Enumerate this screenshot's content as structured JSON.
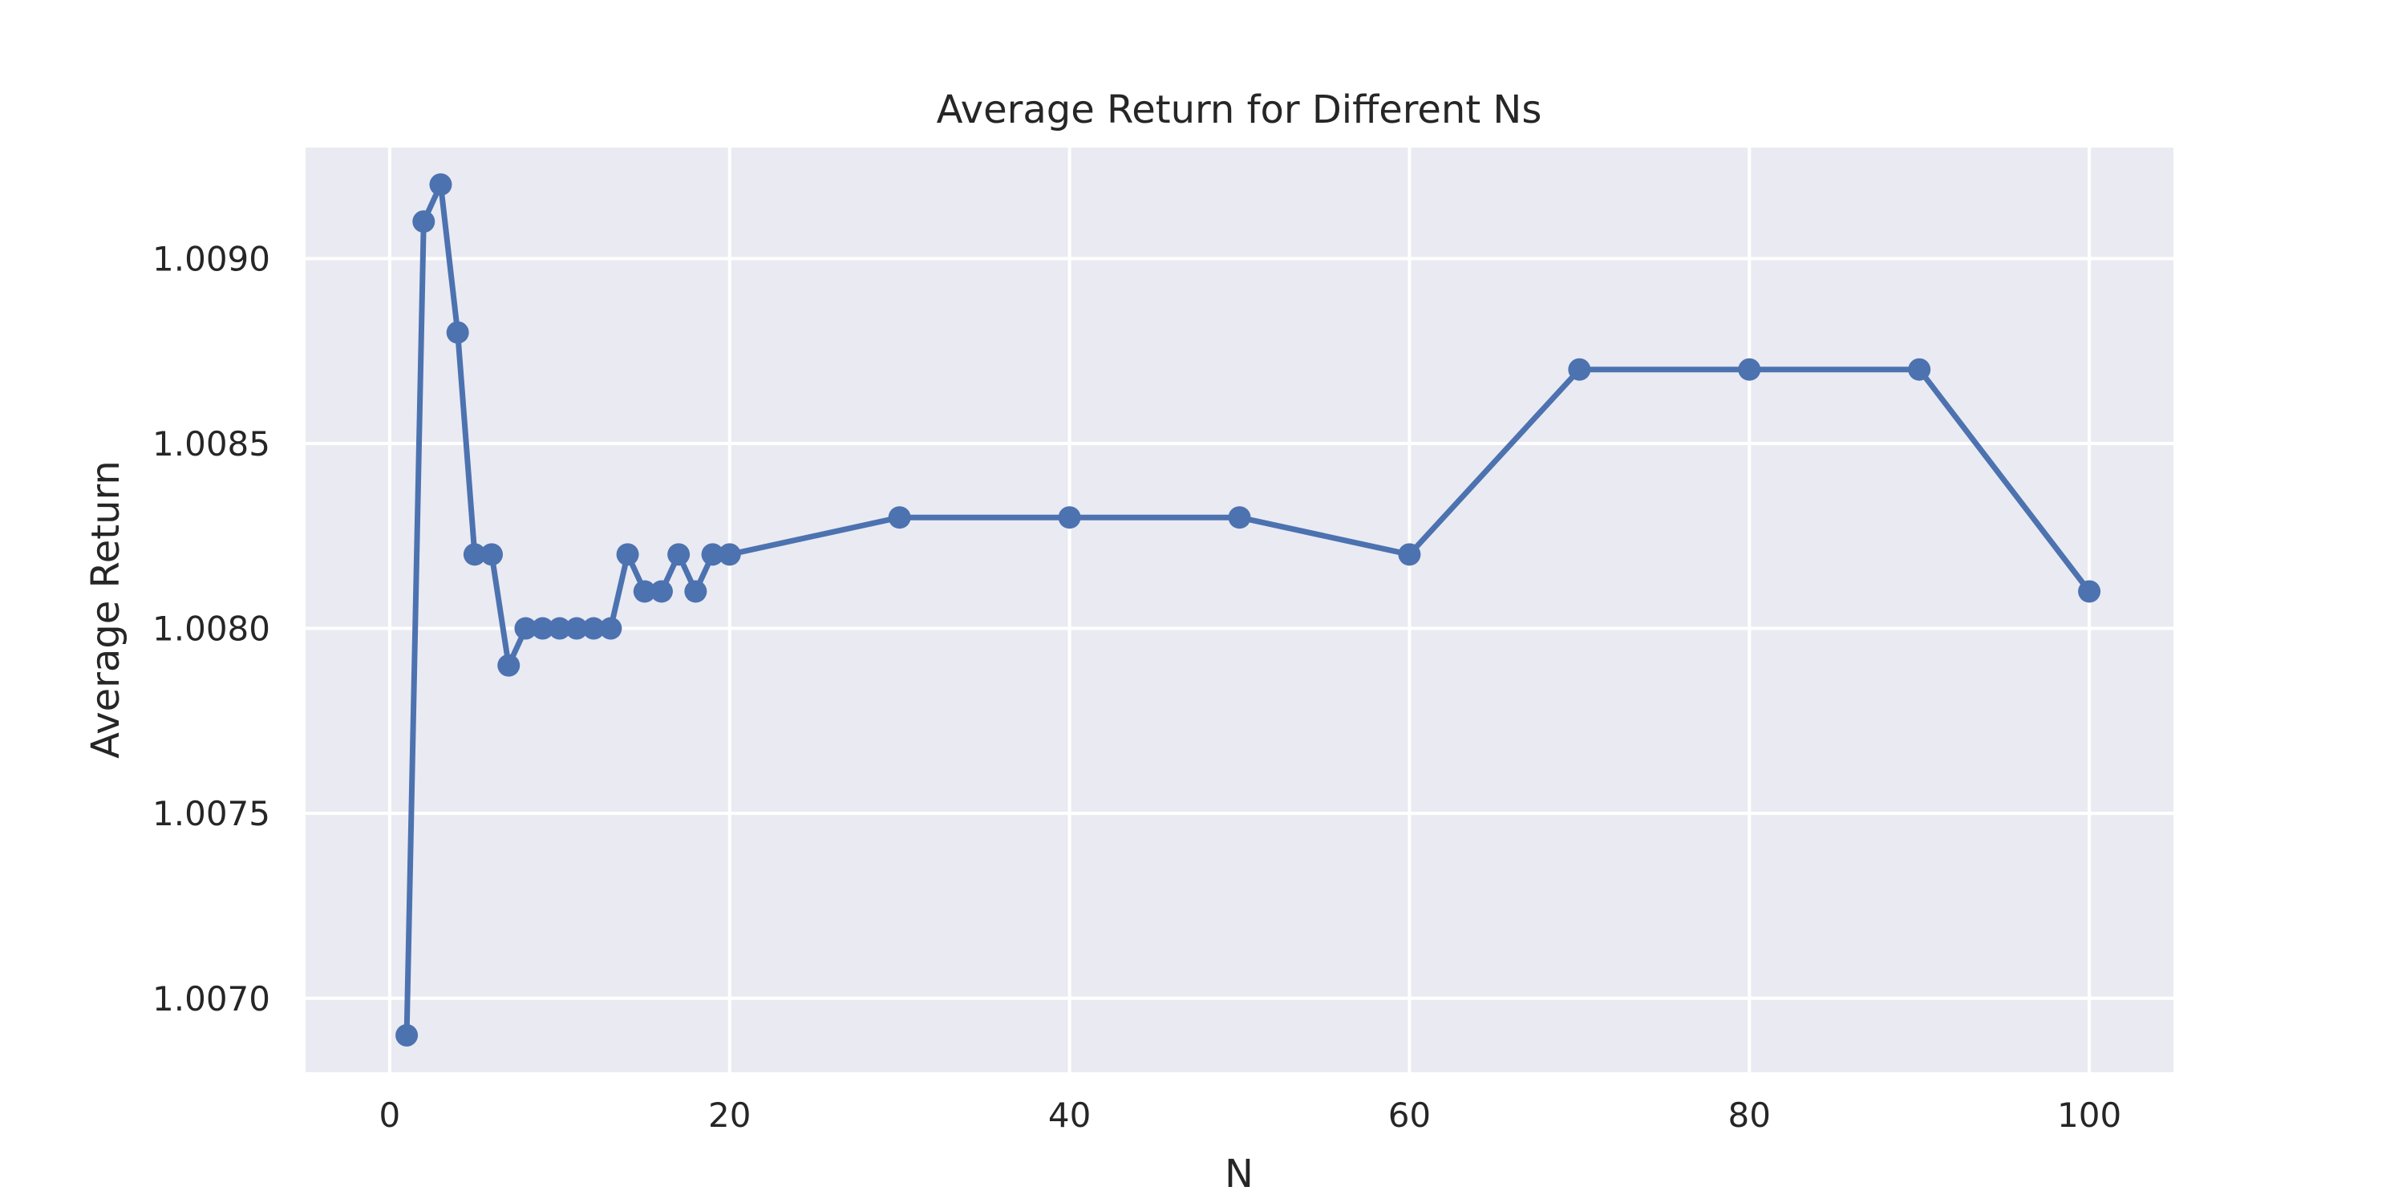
{
  "chart_data": {
    "type": "line",
    "title": "Average Return for Different Ns",
    "xlabel": "N",
    "ylabel": "Average Return",
    "xlim": [
      -4.95,
      104.95
    ],
    "ylim": [
      1.0068,
      1.0093
    ],
    "xticks": [
      0,
      20,
      40,
      60,
      80,
      100
    ],
    "xtick_labels": [
      "0",
      "20",
      "40",
      "60",
      "80",
      "100"
    ],
    "yticks": [
      1.007,
      1.0075,
      1.008,
      1.0085,
      1.009
    ],
    "ytick_labels": [
      "1.0070",
      "1.0075",
      "1.0080",
      "1.0085",
      "1.0090"
    ],
    "grid": true,
    "series": [
      {
        "name": "Average Return",
        "color": "#4c72b0",
        "marker": "circle",
        "x": [
          1,
          2,
          3,
          4,
          5,
          6,
          7,
          8,
          9,
          10,
          11,
          12,
          13,
          14,
          15,
          16,
          17,
          18,
          19,
          20,
          30,
          40,
          50,
          60,
          70,
          80,
          90,
          100
        ],
        "y": [
          1.0069,
          1.0091,
          1.0092,
          1.0088,
          1.0082,
          1.0082,
          1.0079,
          1.008,
          1.008,
          1.008,
          1.008,
          1.008,
          1.008,
          1.0082,
          1.0081,
          1.0081,
          1.0082,
          1.0081,
          1.0082,
          1.0082,
          1.0083,
          1.0083,
          1.0083,
          1.0082,
          1.0087,
          1.0087,
          1.0087,
          1.0081
        ]
      }
    ]
  }
}
